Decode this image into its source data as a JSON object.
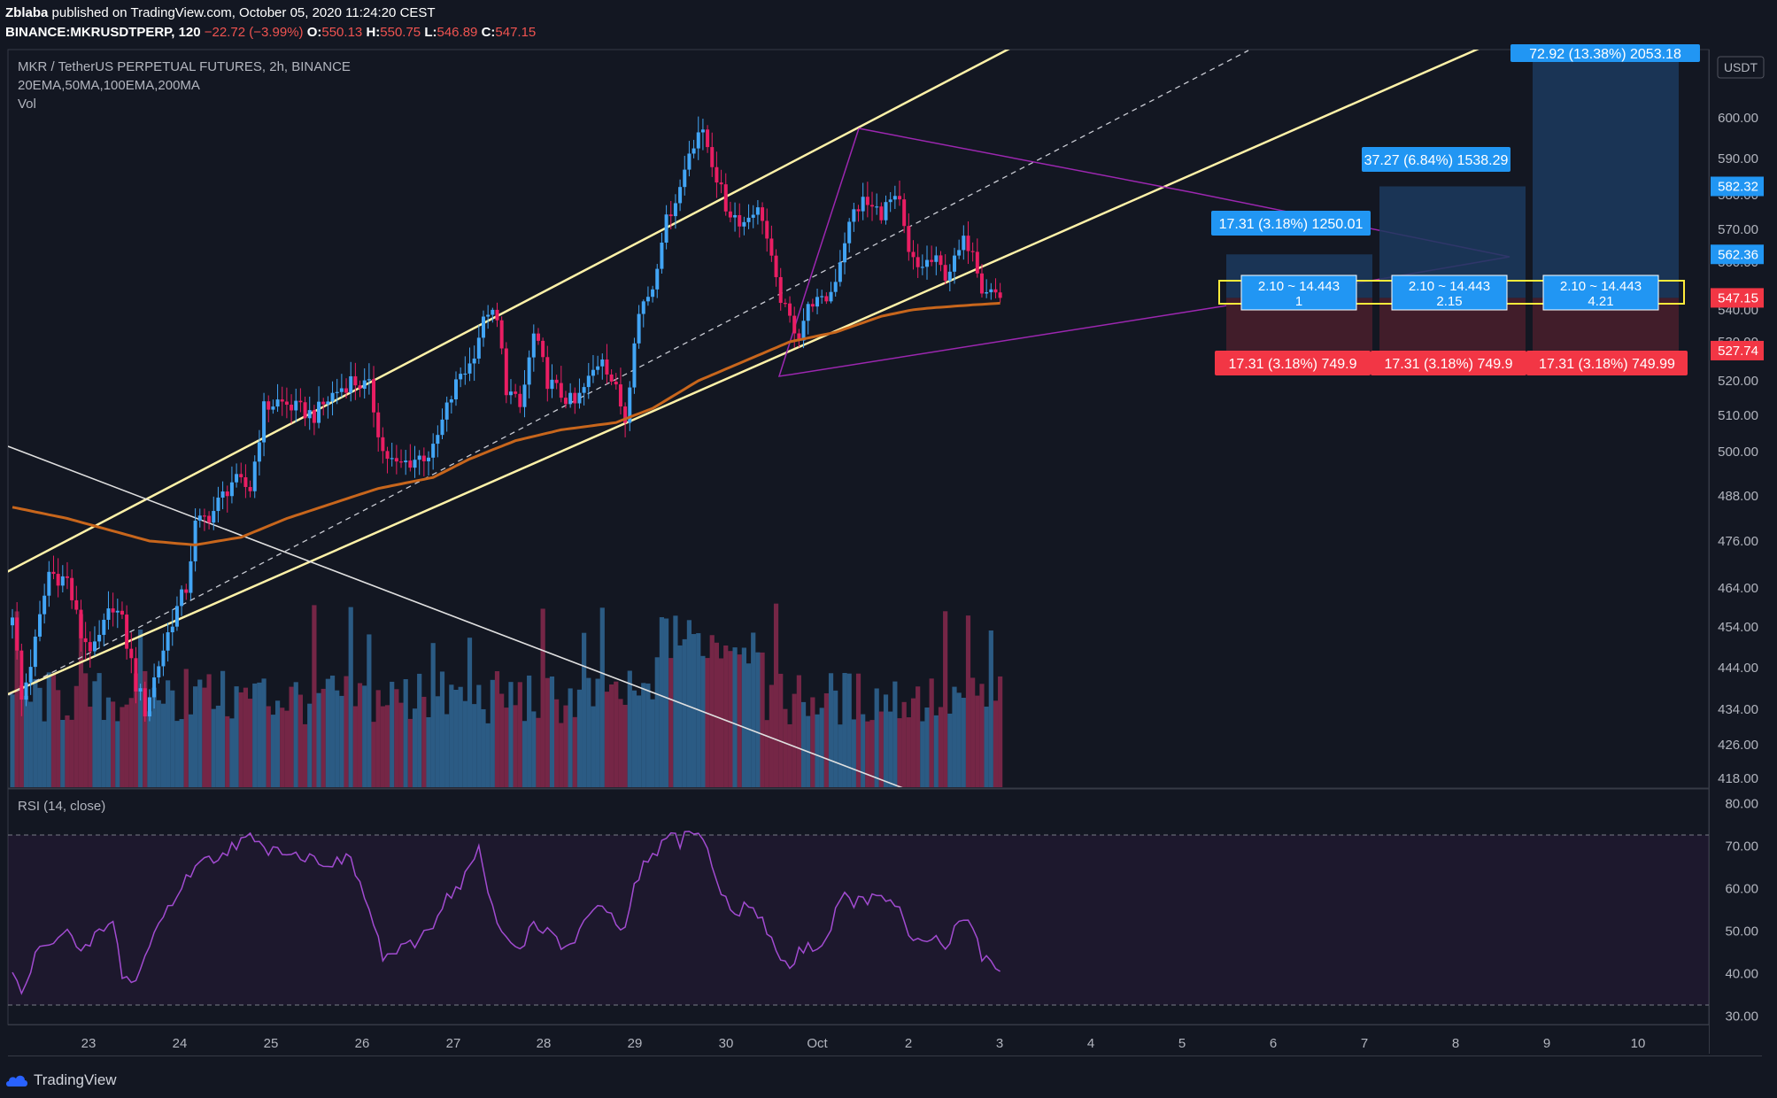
{
  "header": {
    "author": "Zblaba",
    "published": "published on TradingView.com, October 05, 2020 11:24:20 CEST",
    "symbol": "BINANCE:MKRUSDTPERP, 120",
    "change": "−22.72 (−3.99%)",
    "ohlc": {
      "o_label": "O:",
      "o": "550.13",
      "h_label": "H:",
      "h": "550.75",
      "l_label": "L:",
      "l": "546.89",
      "c_label": "C:",
      "c": "547.15"
    }
  },
  "legend": {
    "title": "MKR / TetherUS PERPETUAL FUTURES, 2h, BINANCE",
    "indicators": "20EMA,50MA,100EMA,200MA",
    "vol": "Vol",
    "rsi": "RSI (14, close)"
  },
  "currency_badge": "USDT",
  "footer": {
    "brand": "TradingView"
  },
  "colors": {
    "bg": "#131722",
    "up": "#42a5f5",
    "down": "#e91e63",
    "channel": "#fff2a8",
    "ma": "#c8661c",
    "triangle": "#9c27b0",
    "rsi": "#a24bd1",
    "target": "#2196f3",
    "stop": "#f23645"
  },
  "chart_data": [
    {
      "type": "candlestick",
      "title": "MKR / TetherUS PERPETUAL FUTURES, 2h, BINANCE",
      "ylim": [
        415,
        615
      ],
      "y_ticks": [
        "600.00",
        "590.00",
        "580.00",
        "570.00",
        "560.00",
        "550.00",
        "540.00",
        "530.00",
        "520.00",
        "510.00",
        "500.00",
        "488.00",
        "476.00",
        "464.00",
        "454.00",
        "444.00",
        "434.00",
        "426.00",
        "418.00"
      ],
      "x_ticks": [
        "23",
        "24",
        "25",
        "26",
        "27",
        "28",
        "29",
        "30",
        "Oct",
        "2",
        "3",
        "4",
        "5",
        "6",
        "7",
        "8",
        "9",
        "10"
      ],
      "anchors": [
        [
          0,
          458
        ],
        [
          2,
          436
        ],
        [
          5,
          450
        ],
        [
          8,
          468
        ],
        [
          12,
          466
        ],
        [
          15,
          452
        ],
        [
          18,
          448
        ],
        [
          22,
          460
        ],
        [
          24,
          455
        ],
        [
          27,
          440
        ],
        [
          29,
          434
        ],
        [
          32,
          445
        ],
        [
          35,
          456
        ],
        [
          38,
          464
        ],
        [
          40,
          480
        ],
        [
          44,
          484
        ],
        [
          48,
          492
        ],
        [
          52,
          490
        ],
        [
          55,
          512
        ],
        [
          58,
          514
        ],
        [
          62,
          512
        ],
        [
          66,
          510
        ],
        [
          70,
          516
        ],
        [
          74,
          520
        ],
        [
          78,
          518
        ],
        [
          81,
          500
        ],
        [
          84,
          496
        ],
        [
          88,
          498
        ],
        [
          92,
          500
        ],
        [
          95,
          512
        ],
        [
          98,
          522
        ],
        [
          100,
          524
        ],
        [
          102,
          532
        ],
        [
          104,
          540
        ],
        [
          106,
          536
        ],
        [
          108,
          518
        ],
        [
          111,
          512
        ],
        [
          114,
          532
        ],
        [
          117,
          520
        ],
        [
          120,
          516
        ],
        [
          123,
          513
        ],
        [
          126,
          520
        ],
        [
          129,
          527
        ],
        [
          132,
          517
        ],
        [
          134,
          509
        ],
        [
          136,
          532
        ],
        [
          138,
          545
        ],
        [
          140,
          552
        ],
        [
          142,
          568
        ],
        [
          144,
          576
        ],
        [
          146,
          582
        ],
        [
          148,
          592
        ],
        [
          150,
          597
        ],
        [
          152,
          593
        ],
        [
          154,
          585
        ],
        [
          156,
          576
        ],
        [
          158,
          574
        ],
        [
          160,
          572
        ],
        [
          162,
          576
        ],
        [
          164,
          574
        ],
        [
          166,
          560
        ],
        [
          168,
          546
        ],
        [
          170,
          537
        ],
        [
          172,
          532
        ],
        [
          174,
          542
        ],
        [
          176,
          546
        ],
        [
          178,
          546
        ],
        [
          180,
          555
        ],
        [
          182,
          567
        ],
        [
          184,
          575
        ],
        [
          186,
          578
        ],
        [
          188,
          576
        ],
        [
          190,
          575
        ],
        [
          192,
          578
        ],
        [
          194,
          577
        ],
        [
          196,
          562
        ],
        [
          198,
          558
        ],
        [
          200,
          560
        ],
        [
          202,
          560
        ],
        [
          204,
          556
        ],
        [
          206,
          560
        ],
        [
          208,
          566
        ],
        [
          210,
          565
        ],
        [
          212,
          552
        ],
        [
          214,
          551
        ],
        [
          215,
          550
        ],
        [
          216,
          547.15
        ]
      ],
      "ma_series": [
        [
          0,
          485
        ],
        [
          12,
          482
        ],
        [
          24,
          478
        ],
        [
          30,
          476
        ],
        [
          40,
          475
        ],
        [
          50,
          477
        ],
        [
          60,
          482
        ],
        [
          70,
          486
        ],
        [
          80,
          490
        ],
        [
          92,
          493
        ],
        [
          100,
          498
        ],
        [
          110,
          503
        ],
        [
          120,
          506
        ],
        [
          132,
          508
        ],
        [
          140,
          512
        ],
        [
          150,
          520
        ],
        [
          160,
          525
        ],
        [
          170,
          530
        ],
        [
          180,
          533
        ],
        [
          190,
          538
        ],
        [
          200,
          541
        ],
        [
          210,
          543
        ],
        [
          216,
          544
        ]
      ],
      "volume_max": 460,
      "price_labels": {
        "last": "547.15",
        "target_1": "582.32",
        "target_2": "562.36",
        "stop": "527.74"
      },
      "projections": {
        "target_1": "37.27 (6.84%) 1538.29",
        "target_2": "17.31 (3.18%) 1250.01",
        "target_3": "72.92 (13.38%) 2053.18",
        "stops": [
          "17.31 (3.18%) 749.9",
          "17.31 (3.18%) 749.9",
          "17.31 (3.18%) 749.99"
        ],
        "positions": [
          {
            "ratio": "2.10 ~ 14.443",
            "qty": "1"
          },
          {
            "ratio": "2.10 ~ 14.443",
            "qty": "2.15"
          },
          {
            "ratio": "2.10 ~ 14.443",
            "qty": "4.21"
          }
        ]
      }
    },
    {
      "type": "line",
      "title": "RSI (14, close)",
      "ylim": [
        25,
        82
      ],
      "y_ticks": [
        "80.00",
        "70.00",
        "60.00",
        "50.00",
        "40.00",
        "30.00"
      ],
      "bands": [
        70,
        30
      ],
      "anchors": [
        [
          0,
          40
        ],
        [
          2,
          35
        ],
        [
          5,
          44
        ],
        [
          8,
          48
        ],
        [
          12,
          50
        ],
        [
          15,
          44
        ],
        [
          18,
          49
        ],
        [
          22,
          52
        ],
        [
          24,
          40
        ],
        [
          27,
          38
        ],
        [
          29,
          44
        ],
        [
          32,
          52
        ],
        [
          35,
          57
        ],
        [
          38,
          62
        ],
        [
          40,
          66
        ],
        [
          44,
          67
        ],
        [
          48,
          70
        ],
        [
          52,
          72
        ],
        [
          55,
          69
        ],
        [
          58,
          70
        ],
        [
          62,
          68
        ],
        [
          66,
          67
        ],
        [
          70,
          66
        ],
        [
          74,
          67
        ],
        [
          78,
          55
        ],
        [
          81,
          44
        ],
        [
          84,
          45
        ],
        [
          88,
          47
        ],
        [
          92,
          52
        ],
        [
          95,
          58
        ],
        [
          98,
          61
        ],
        [
          100,
          65
        ],
        [
          102,
          70
        ],
        [
          104,
          58
        ],
        [
          106,
          52
        ],
        [
          108,
          48
        ],
        [
          111,
          46
        ],
        [
          114,
          52
        ],
        [
          117,
          50
        ],
        [
          120,
          46
        ],
        [
          123,
          48
        ],
        [
          126,
          54
        ],
        [
          129,
          55
        ],
        [
          132,
          52
        ],
        [
          134,
          50
        ],
        [
          136,
          60
        ],
        [
          138,
          65
        ],
        [
          140,
          68
        ],
        [
          142,
          70
        ],
        [
          144,
          73
        ],
        [
          146,
          71
        ],
        [
          148,
          74
        ],
        [
          150,
          73
        ],
        [
          152,
          69
        ],
        [
          154,
          62
        ],
        [
          156,
          57
        ],
        [
          158,
          54
        ],
        [
          160,
          56
        ],
        [
          162,
          55
        ],
        [
          164,
          52
        ],
        [
          166,
          48
        ],
        [
          168,
          44
        ],
        [
          170,
          41
        ],
        [
          172,
          45
        ],
        [
          174,
          47
        ],
        [
          176,
          46
        ],
        [
          178,
          48
        ],
        [
          180,
          55
        ],
        [
          182,
          58
        ],
        [
          184,
          57
        ],
        [
          186,
          57
        ],
        [
          188,
          58
        ],
        [
          190,
          57
        ],
        [
          192,
          58
        ],
        [
          194,
          55
        ],
        [
          196,
          48
        ],
        [
          198,
          47
        ],
        [
          200,
          48
        ],
        [
          202,
          48
        ],
        [
          204,
          46
        ],
        [
          206,
          50
        ],
        [
          208,
          53
        ],
        [
          210,
          52
        ],
        [
          212,
          44
        ],
        [
          214,
          43
        ],
        [
          215,
          42
        ],
        [
          216,
          41
        ]
      ]
    }
  ]
}
